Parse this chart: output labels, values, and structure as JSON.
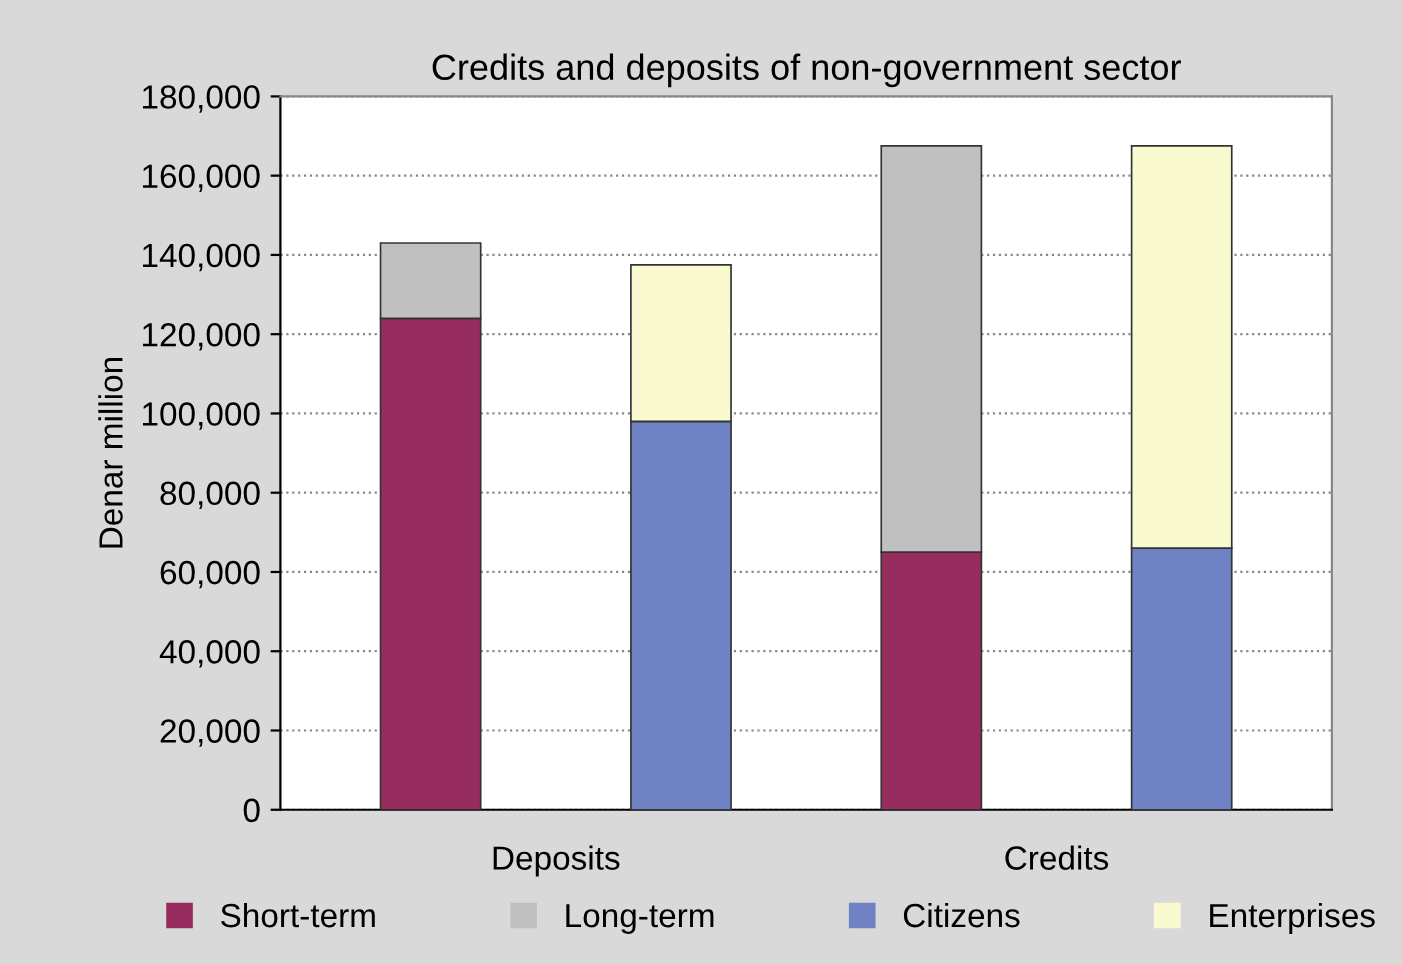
{
  "chart_data": {
    "type": "bar",
    "title": "Credits and deposits of non-government sector",
    "ylabel": "Denar million",
    "categories": [
      null,
      null,
      null,
      null
    ],
    "annotations": [
      "Deposits",
      "Credits"
    ],
    "stacked": true,
    "series": [
      {
        "name": "Short-term",
        "color": "#962d5e",
        "values": [
          124000,
          null,
          65000,
          null
        ]
      },
      {
        "name": "Long-term",
        "color": "#c0c0c0",
        "values": [
          19000,
          null,
          102500,
          null
        ]
      },
      {
        "name": "Citizens",
        "color": "#6e82c4",
        "values": [
          null,
          98000,
          null,
          66000
        ]
      },
      {
        "name": "Enterprises",
        "color": "#fafad0",
        "values": [
          null,
          39500,
          null,
          101500
        ]
      }
    ],
    "ylim": [
      0,
      180000
    ],
    "yticks": [
      {
        "value": 0,
        "label": "0"
      },
      {
        "value": 20000,
        "label": "20,000"
      },
      {
        "value": 40000,
        "label": "40,000"
      },
      {
        "value": 60000,
        "label": "60,000"
      },
      {
        "value": 80000,
        "label": "80,000"
      },
      {
        "value": 100000,
        "label": "100,000"
      },
      {
        "value": 120000,
        "label": "120,000"
      },
      {
        "value": 140000,
        "label": "140,000"
      },
      {
        "value": 160000,
        "label": "160,000"
      },
      {
        "value": 180000,
        "label": "180,000"
      }
    ],
    "grid": "y",
    "legend": "bottom"
  }
}
